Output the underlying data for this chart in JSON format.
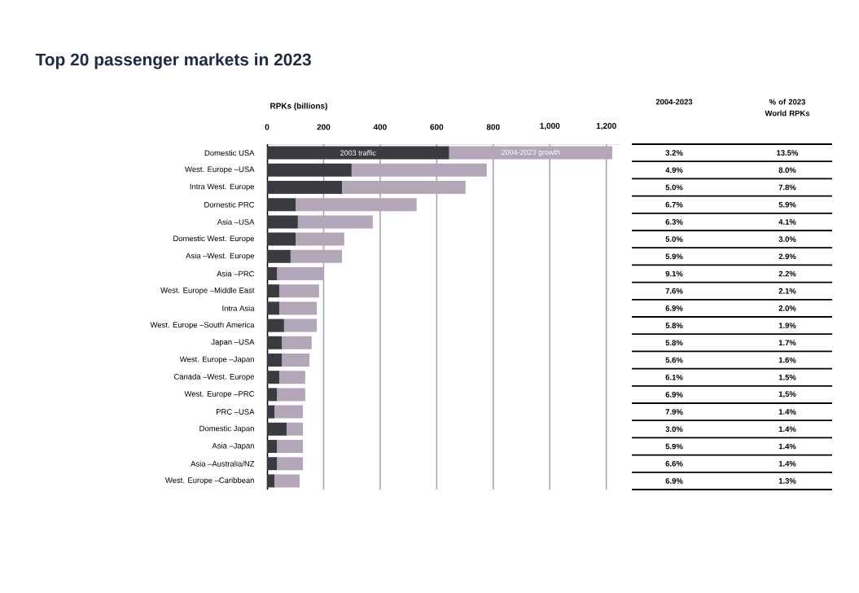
{
  "chart_data": {
    "type": "bar",
    "orientation": "horizontal",
    "stacked": true,
    "title": "Top 20 passenger markets in 2023",
    "xlabel": "RPKs (billions)",
    "categories": [
      "Domestic USA",
      "West. Europe –USA",
      "Intra West. Europe",
      "Domestic PRC",
      "Asia –USA",
      "Domestic West. Europe",
      "Asia –West. Europe",
      "Asia –PRC",
      "West. Europe –Middle East",
      "Intra Asia",
      "West. Europe –South America",
      "Japan –USA",
      "West. Europe –Japan",
      "Canada –West. Europe",
      "West. Europe –PRC",
      "PRC –USA",
      "Domestic Japan",
      "Asia –Japan",
      "Asia –Australia/NZ",
      "West. Europe –Caribbean"
    ],
    "series": [
      {
        "name": "2003 traffic",
        "color": "#3a3b40",
        "values": [
          644,
          299,
          265,
          101,
          109,
          101,
          83,
          35,
          43,
          43,
          60,
          52,
          52,
          43,
          35,
          26,
          69,
          35,
          35,
          26
        ]
      },
      {
        "name": "2004-2023 growth",
        "color": "#b3a6b9",
        "values": [
          577,
          478,
          437,
          428,
          265,
          172,
          182,
          166,
          141,
          133,
          116,
          106,
          98,
          92,
          100,
          101,
          58,
          92,
          92,
          89
        ]
      }
    ],
    "xlim": [
      0,
      1250
    ],
    "xticks": [
      0,
      200,
      400,
      600,
      800,
      {
        "value": 1000,
        "label": "1,000"
      },
      {
        "value": 1200,
        "label": "1,200"
      }
    ],
    "grid": "x",
    "annotations": [
      "2004-2023",
      "% of 2023 World RPKs",
      "3.2%",
      "13.5%",
      "4.9%",
      "8.0%",
      "5.0%",
      "7.8%",
      "6.7%",
      "5.9%",
      "6.3%",
      "4.1%",
      "5.0%",
      "3.0%",
      "5.9%",
      "2.9%",
      "9.1%",
      "2.2%",
      "7.6%",
      "2.1%",
      "6.9%",
      "2.0%",
      "5.8%",
      "1.9%",
      "5.8%",
      "1.7%",
      "5.6%",
      "1.6%",
      "6.1%",
      "1.5%",
      "6.9%",
      "1,5%",
      "7.9%",
      "1.4%",
      "3.0%",
      "1.4%",
      "5.9%",
      "1.4%",
      "6.6%",
      "1.4%",
      "6.9%",
      "1.3%"
    ]
  }
}
